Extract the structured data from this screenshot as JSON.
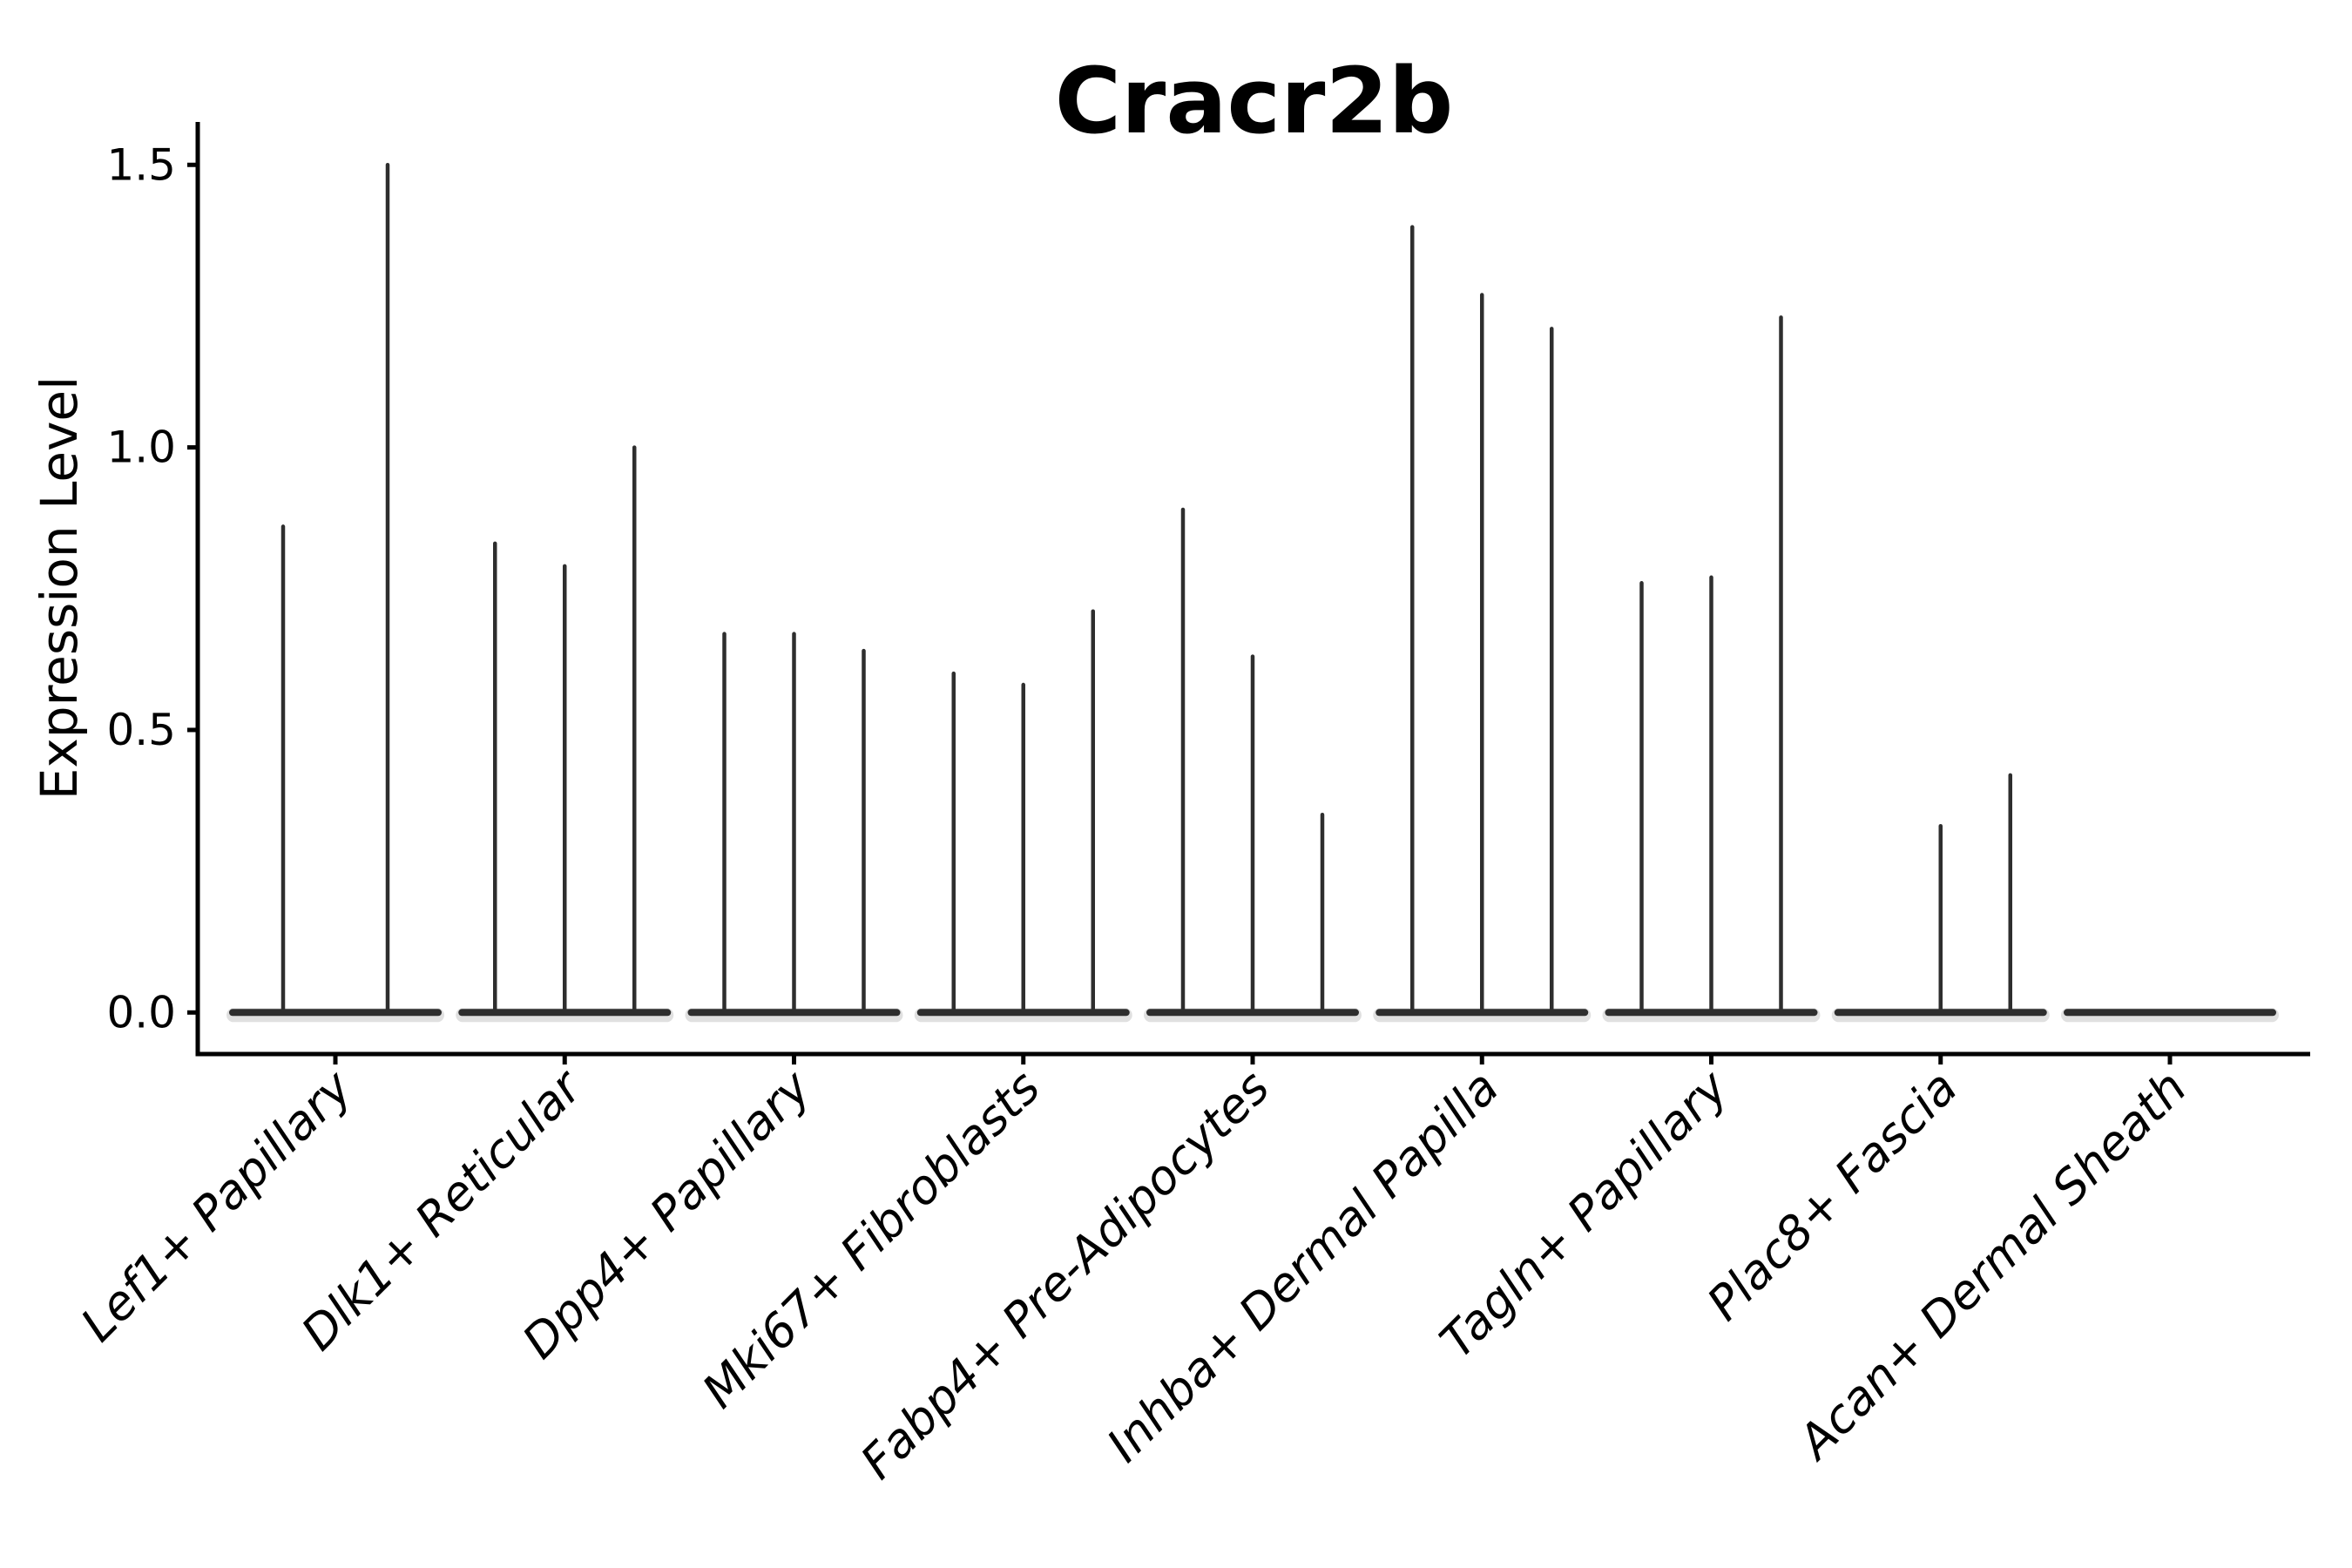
{
  "figure": {
    "background": "#ffffff",
    "violin_line_color": "#2e2e2e",
    "violin_fill_halo_color": "#bbbbbb",
    "axis_color": "#000000",
    "text_color": "#000000"
  },
  "chart_data": {
    "type": "violin",
    "title": "Cracr2b",
    "xlabel": "",
    "ylabel": "Expression Level",
    "ytick_labels": [
      "0.0",
      "0.5",
      "1.0",
      "1.5"
    ],
    "ytick_values": [
      0.0,
      0.5,
      1.0,
      1.5
    ],
    "ylim": [
      -0.073,
      1.576
    ],
    "grid": false,
    "legend_position": "none",
    "categories": [
      "Lef1+ Papillary",
      "Dlk1+ Reticular",
      "Dpp4+ Papillary",
      "Mki67+ Fibroblasts",
      "Fabp4+ Pre-Adipocytes",
      "Inhba+ Dermal Papilla",
      "Tagln+ Papillary",
      "Plac8+ Fascia",
      "Acan+ Dermal Sheath"
    ],
    "groups": [
      {
        "label": "Lef1+ Papillary",
        "violin_max_values": [
          0.86,
          1.5
        ]
      },
      {
        "label": "Dlk1+ Reticular",
        "violin_max_values": [
          0.83,
          0.79,
          1.0
        ]
      },
      {
        "label": "Dpp4+ Papillary",
        "violin_max_values": [
          0.67,
          0.67,
          0.64
        ]
      },
      {
        "label": "Mki67+ Fibroblasts",
        "violin_max_values": [
          0.6,
          0.58,
          0.71
        ]
      },
      {
        "label": "Fabp4+ Pre-Adipocytes",
        "violin_max_values": [
          0.89,
          0.63,
          0.35
        ]
      },
      {
        "label": "Inhba+ Dermal Papilla",
        "violin_max_values": [
          1.39,
          1.27,
          1.21
        ]
      },
      {
        "label": "Tagln+ Papillary",
        "violin_max_values": [
          0.76,
          0.77,
          1.23
        ]
      },
      {
        "label": "Plac8+ Fascia",
        "violin_max_values": [
          0.0,
          0.33,
          0.42
        ]
      },
      {
        "label": "Acan+ Dermal Sheath",
        "violin_max_values": [
          0.0,
          0.0,
          0.0
        ]
      }
    ]
  }
}
